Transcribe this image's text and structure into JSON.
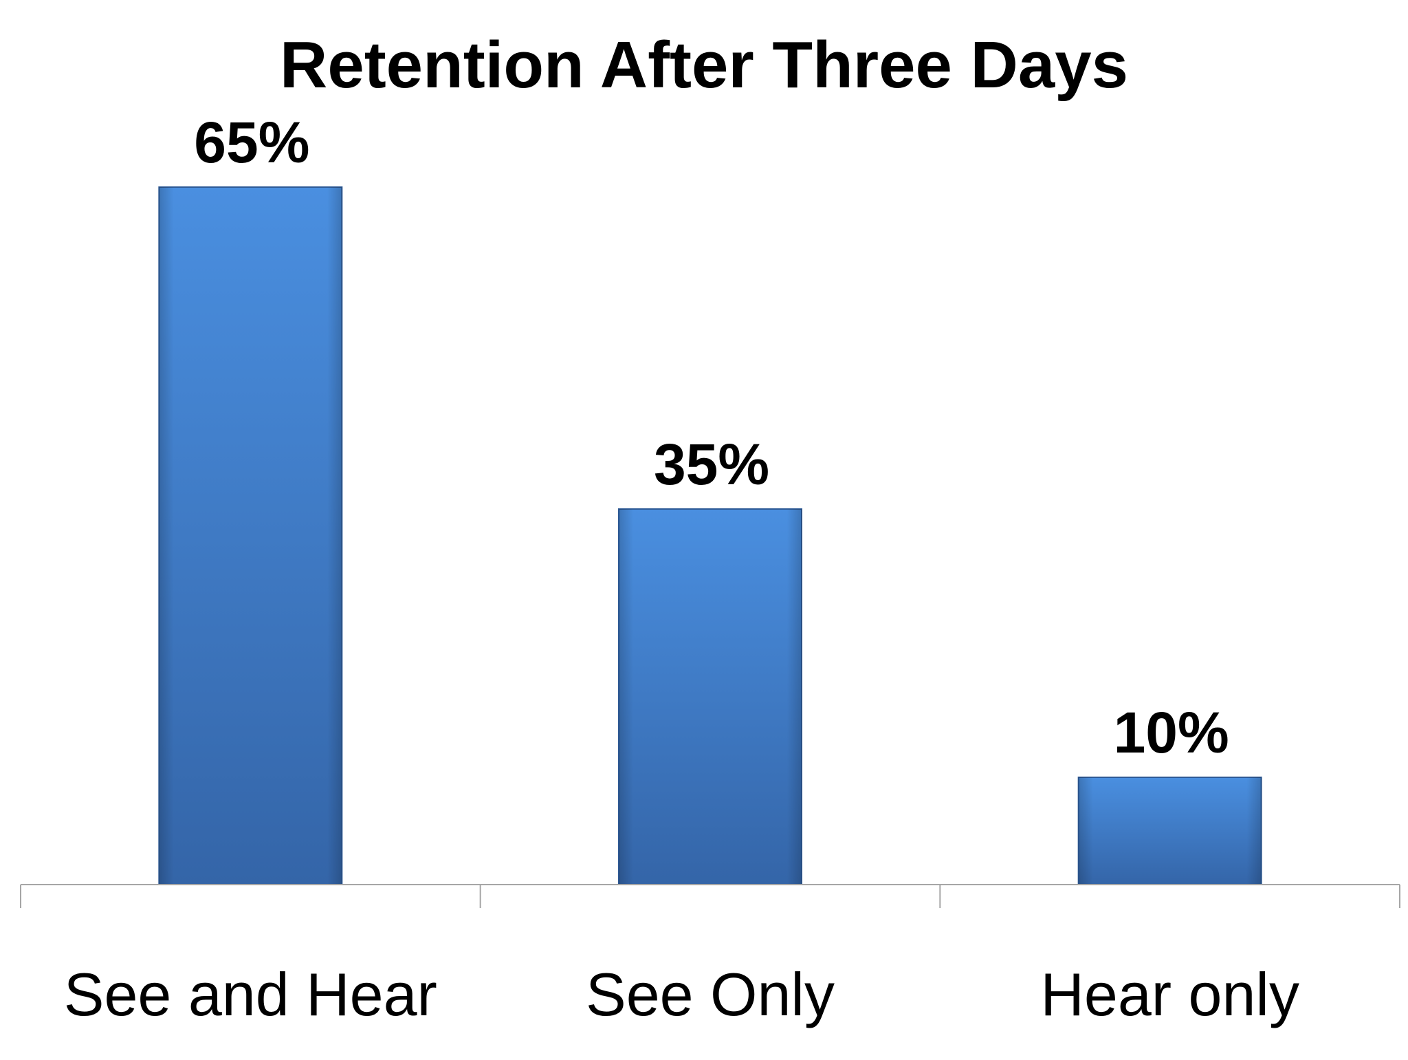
{
  "chart_data": {
    "type": "bar",
    "title": "Retention After Three Days",
    "categories": [
      "See and Hear",
      "See Only",
      "Hear only"
    ],
    "values": [
      65,
      35,
      10
    ],
    "data_labels": [
      "65%",
      "35%",
      "10%"
    ],
    "xlabel": "",
    "ylabel": "",
    "ylim": [
      0,
      70
    ],
    "grid": false,
    "legend": "none",
    "colors": {
      "bar_top": "#4a8fe0",
      "bar_bottom": "#3465a8",
      "bar_edge": "#2e5a96",
      "axis": "#a6a6a6",
      "text": "#000000"
    }
  }
}
